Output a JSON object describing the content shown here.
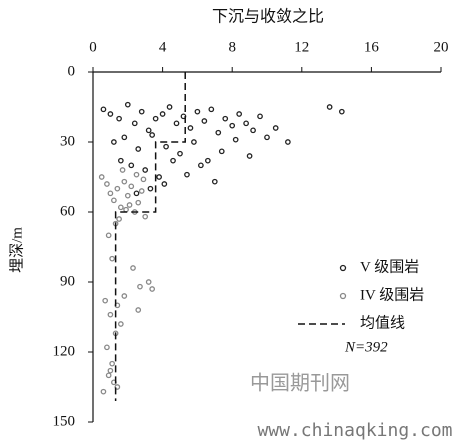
{
  "chart_data": {
    "type": "scatter",
    "title": "下沉与收敛之比",
    "y_label": "埋深/m",
    "xlim": [
      0,
      20
    ],
    "xticks": [
      0,
      4,
      8,
      12,
      16,
      20
    ],
    "x_axis_position": "top",
    "ylim": [
      0,
      150
    ],
    "yticks": [
      0,
      30,
      60,
      90,
      120,
      150
    ],
    "y_inverted": true,
    "series": [
      {
        "name": "V 级围岩",
        "color": "#222222",
        "marker": "circle",
        "x": [
          0.6,
          1.0,
          1.5,
          2.0,
          2.4,
          2.8,
          3.2,
          3.6,
          4.0,
          4.4,
          4.8,
          5.2,
          5.6,
          6.0,
          6.4,
          6.8,
          7.2,
          7.6,
          8.0,
          8.4,
          8.8,
          9.2,
          9.6,
          10.0,
          10.5,
          11.2,
          13.6,
          14.3,
          1.2,
          1.8,
          2.6,
          3.4,
          4.2,
          5.0,
          5.8,
          6.6,
          7.4,
          8.2,
          9.0,
          2.2,
          3.0,
          3.8,
          4.6,
          5.4,
          6.2,
          7.0,
          2.5,
          3.3,
          4.1,
          1.6
        ],
        "values": [
          16,
          18,
          20,
          14,
          22,
          17,
          25,
          20,
          18,
          15,
          22,
          19,
          24,
          17,
          21,
          16,
          26,
          20,
          23,
          18,
          22,
          25,
          19,
          28,
          24,
          30,
          15,
          17,
          30,
          28,
          33,
          27,
          32,
          35,
          30,
          38,
          34,
          29,
          36,
          40,
          42,
          45,
          38,
          44,
          40,
          47,
          52,
          50,
          48,
          38
        ]
      },
      {
        "name": "IV 级围岩",
        "color": "#888888",
        "marker": "circle",
        "x": [
          0.5,
          0.8,
          1.0,
          1.2,
          1.4,
          1.6,
          1.8,
          2.0,
          2.2,
          2.4,
          2.6,
          2.8,
          3.0,
          1.3,
          1.7,
          2.1,
          2.5,
          2.9,
          1.5,
          1.9,
          0.9,
          1.1,
          2.3,
          2.7,
          3.2,
          1.4,
          1.8,
          2.6,
          3.4,
          1.6,
          0.7,
          1.0,
          1.3,
          0.8,
          1.1,
          0.9,
          1.2,
          1.0,
          1.4,
          0.6
        ],
        "values": [
          45,
          48,
          52,
          55,
          50,
          58,
          47,
          53,
          49,
          60,
          56,
          51,
          62,
          65,
          42,
          57,
          44,
          46,
          63,
          59,
          70,
          80,
          84,
          92,
          90,
          100,
          96,
          102,
          93,
          108,
          98,
          104,
          112,
          118,
          125,
          130,
          133,
          128,
          135,
          137
        ]
      },
      {
        "name": "均值线",
        "color": "#111111",
        "marker": "dashed-line",
        "x": [
          5.3,
          5.3,
          3.6,
          3.6,
          1.3,
          1.3
        ],
        "values": [
          0,
          30,
          30,
          60,
          60,
          141
        ]
      }
    ],
    "annotation": "N=392",
    "legend": "right",
    "watermark": [
      "中国期刊网",
      "www.chinaqking.com"
    ]
  }
}
